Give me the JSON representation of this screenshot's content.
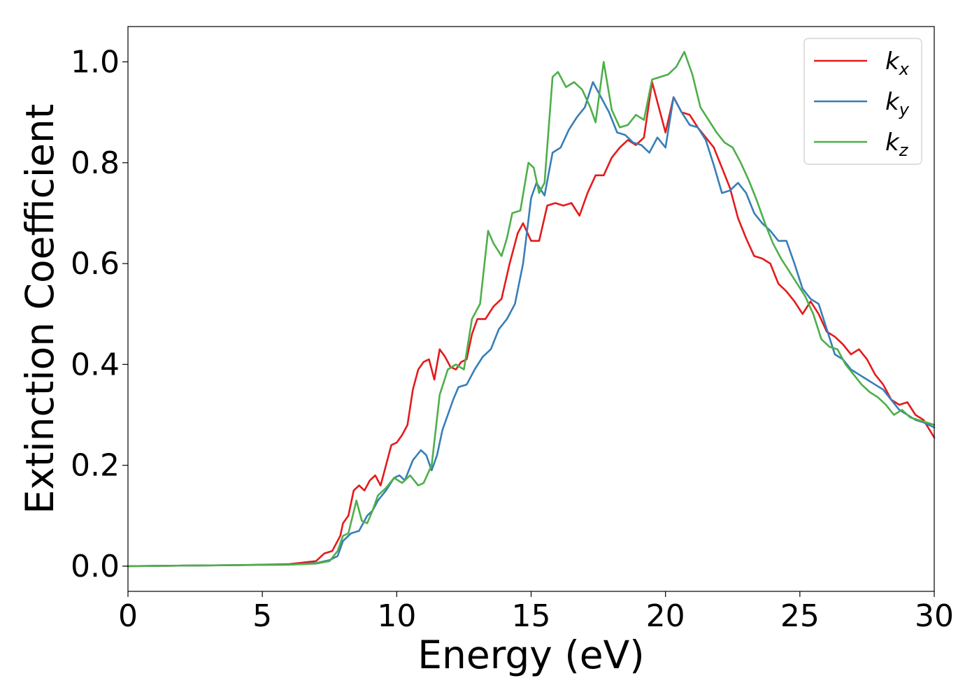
{
  "chart_data": {
    "type": "line",
    "title": "",
    "xlabel": "Energy (eV)",
    "ylabel": "Extinction Coefficient",
    "xlim": [
      0,
      30
    ],
    "ylim": [
      -0.05,
      1.07
    ],
    "xticks": [
      0,
      5,
      10,
      15,
      20,
      25,
      30
    ],
    "xtick_labels": [
      "0",
      "5",
      "10",
      "15",
      "20",
      "25",
      "30"
    ],
    "yticks": [
      0.0,
      0.2,
      0.4,
      0.6,
      0.8,
      1.0
    ],
    "ytick_labels": [
      "0.0",
      "0.2",
      "0.4",
      "0.6",
      "0.8",
      "1.0"
    ],
    "grid": false,
    "legend_position": "top-right",
    "series": [
      {
        "name": "k_x",
        "label_base": "k",
        "label_sub": "x",
        "color": "#e41a1c",
        "x": [
          0,
          2,
          4,
          6,
          7,
          7.3,
          7.6,
          7.9,
          8.0,
          8.2,
          8.4,
          8.6,
          8.8,
          9.0,
          9.2,
          9.4,
          9.6,
          9.8,
          10.0,
          10.2,
          10.4,
          10.6,
          10.8,
          11.0,
          11.2,
          11.4,
          11.6,
          11.8,
          12.0,
          12.2,
          12.4,
          12.6,
          12.8,
          13.0,
          13.3,
          13.6,
          13.9,
          14.2,
          14.5,
          14.7,
          15.0,
          15.3,
          15.6,
          15.9,
          16.2,
          16.5,
          16.8,
          17.1,
          17.4,
          17.7,
          18.0,
          18.3,
          18.6,
          18.9,
          19.2,
          19.5,
          19.8,
          20.0,
          20.3,
          20.6,
          20.9,
          21.2,
          21.5,
          21.8,
          22.1,
          22.4,
          22.7,
          23.0,
          23.3,
          23.6,
          23.9,
          24.2,
          24.5,
          24.8,
          25.1,
          25.4,
          25.7,
          26.0,
          26.3,
          26.6,
          26.9,
          27.2,
          27.5,
          27.8,
          28.1,
          28.4,
          28.7,
          29.0,
          29.3,
          29.6,
          30.0
        ],
        "y": [
          0.0,
          0.001,
          0.002,
          0.004,
          0.01,
          0.025,
          0.03,
          0.06,
          0.085,
          0.1,
          0.15,
          0.16,
          0.15,
          0.17,
          0.18,
          0.16,
          0.2,
          0.24,
          0.245,
          0.26,
          0.28,
          0.35,
          0.39,
          0.405,
          0.41,
          0.37,
          0.43,
          0.415,
          0.395,
          0.39,
          0.405,
          0.41,
          0.46,
          0.49,
          0.49,
          0.515,
          0.53,
          0.6,
          0.66,
          0.68,
          0.645,
          0.645,
          0.715,
          0.72,
          0.715,
          0.72,
          0.695,
          0.74,
          0.775,
          0.775,
          0.81,
          0.83,
          0.845,
          0.835,
          0.85,
          0.96,
          0.9,
          0.86,
          0.93,
          0.9,
          0.895,
          0.87,
          0.85,
          0.83,
          0.79,
          0.75,
          0.69,
          0.65,
          0.615,
          0.61,
          0.6,
          0.56,
          0.545,
          0.525,
          0.5,
          0.525,
          0.5,
          0.465,
          0.455,
          0.44,
          0.42,
          0.43,
          0.41,
          0.38,
          0.36,
          0.33,
          0.32,
          0.325,
          0.3,
          0.29,
          0.255
        ]
      },
      {
        "name": "k_y",
        "label_base": "k",
        "label_sub": "y",
        "color": "#377eb8",
        "x": [
          0,
          2,
          4,
          6,
          7,
          7.5,
          7.8,
          8.0,
          8.3,
          8.6,
          8.9,
          9.1,
          9.3,
          9.6,
          9.9,
          10.1,
          10.3,
          10.6,
          10.9,
          11.1,
          11.3,
          11.5,
          11.7,
          11.9,
          12.1,
          12.3,
          12.6,
          12.9,
          13.2,
          13.5,
          13.8,
          14.1,
          14.4,
          14.7,
          15.0,
          15.2,
          15.5,
          15.8,
          16.1,
          16.4,
          16.7,
          17.0,
          17.3,
          17.6,
          17.9,
          18.2,
          18.5,
          18.8,
          19.1,
          19.4,
          19.7,
          20.0,
          20.3,
          20.6,
          20.9,
          21.2,
          21.5,
          21.8,
          22.1,
          22.4,
          22.7,
          23.0,
          23.3,
          23.6,
          23.9,
          24.2,
          24.5,
          24.8,
          25.1,
          25.4,
          25.7,
          26.0,
          26.3,
          26.6,
          26.9,
          27.2,
          27.5,
          27.8,
          28.1,
          28.4,
          28.7,
          29.0,
          29.3,
          29.6,
          30.0
        ],
        "y": [
          0.0,
          0.001,
          0.002,
          0.003,
          0.006,
          0.012,
          0.02,
          0.05,
          0.065,
          0.07,
          0.1,
          0.11,
          0.13,
          0.15,
          0.175,
          0.18,
          0.17,
          0.21,
          0.23,
          0.22,
          0.19,
          0.22,
          0.27,
          0.3,
          0.33,
          0.355,
          0.36,
          0.39,
          0.415,
          0.43,
          0.47,
          0.49,
          0.52,
          0.6,
          0.73,
          0.76,
          0.735,
          0.82,
          0.83,
          0.865,
          0.89,
          0.91,
          0.96,
          0.93,
          0.9,
          0.86,
          0.855,
          0.84,
          0.835,
          0.82,
          0.85,
          0.83,
          0.93,
          0.9,
          0.875,
          0.87,
          0.845,
          0.795,
          0.74,
          0.745,
          0.76,
          0.74,
          0.7,
          0.68,
          0.665,
          0.645,
          0.645,
          0.6,
          0.55,
          0.53,
          0.52,
          0.47,
          0.42,
          0.41,
          0.39,
          0.38,
          0.37,
          0.36,
          0.35,
          0.33,
          0.31,
          0.3,
          0.29,
          0.285,
          0.275
        ]
      },
      {
        "name": "k_z",
        "label_base": "k",
        "label_sub": "z",
        "color": "#4daf4a",
        "x": [
          0,
          2,
          4,
          6,
          7,
          7.5,
          7.8,
          8.0,
          8.2,
          8.5,
          8.7,
          8.9,
          9.1,
          9.3,
          9.6,
          9.9,
          10.2,
          10.5,
          10.8,
          11.0,
          11.3,
          11.6,
          11.9,
          12.2,
          12.5,
          12.8,
          13.1,
          13.4,
          13.6,
          13.9,
          14.1,
          14.3,
          14.6,
          14.9,
          15.1,
          15.3,
          15.5,
          15.8,
          16.0,
          16.3,
          16.6,
          16.9,
          17.2,
          17.4,
          17.7,
          18.0,
          18.3,
          18.6,
          18.9,
          19.2,
          19.5,
          19.8,
          20.1,
          20.4,
          20.7,
          21.0,
          21.3,
          21.6,
          21.9,
          22.2,
          22.5,
          22.8,
          23.1,
          23.4,
          23.7,
          24.0,
          24.3,
          24.6,
          24.9,
          25.2,
          25.5,
          25.8,
          26.1,
          26.4,
          26.7,
          27.0,
          27.3,
          27.6,
          27.9,
          28.2,
          28.5,
          28.8,
          29.1,
          29.4,
          29.7,
          30.0
        ],
        "y": [
          0.0,
          0.001,
          0.002,
          0.003,
          0.005,
          0.01,
          0.03,
          0.06,
          0.065,
          0.13,
          0.09,
          0.085,
          0.11,
          0.14,
          0.155,
          0.175,
          0.165,
          0.18,
          0.16,
          0.165,
          0.2,
          0.34,
          0.39,
          0.4,
          0.39,
          0.49,
          0.52,
          0.665,
          0.64,
          0.615,
          0.65,
          0.7,
          0.705,
          0.8,
          0.79,
          0.74,
          0.76,
          0.97,
          0.98,
          0.95,
          0.96,
          0.945,
          0.91,
          0.88,
          1.0,
          0.905,
          0.87,
          0.875,
          0.895,
          0.885,
          0.965,
          0.97,
          0.975,
          0.99,
          1.02,
          0.975,
          0.91,
          0.885,
          0.86,
          0.84,
          0.83,
          0.8,
          0.765,
          0.725,
          0.68,
          0.64,
          0.61,
          0.585,
          0.56,
          0.535,
          0.5,
          0.45,
          0.435,
          0.43,
          0.4,
          0.38,
          0.36,
          0.345,
          0.335,
          0.32,
          0.3,
          0.31,
          0.295,
          0.29,
          0.285,
          0.28
        ]
      }
    ]
  }
}
